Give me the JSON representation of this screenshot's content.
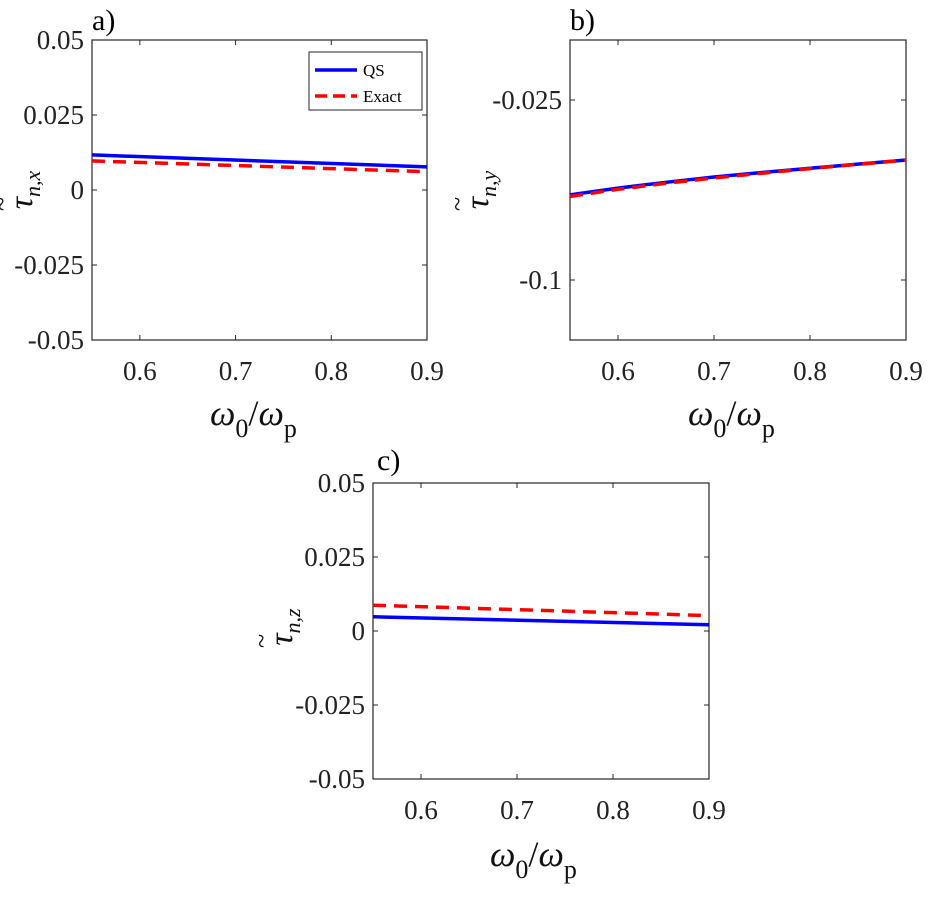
{
  "chart_data": [
    {
      "panel": "a)",
      "type": "line",
      "xlabel": {
        "base": "ω",
        "sub": "0",
        "sep": "/",
        "base2": "ω",
        "sub2": "p"
      },
      "ylabel": {
        "tilde": "~",
        "base": "τ",
        "sub": "n,x"
      },
      "xlim": [
        0.55,
        0.9
      ],
      "ylim": [
        -0.05,
        0.05
      ],
      "xticks": [
        0.6,
        0.7,
        0.8,
        0.9
      ],
      "xtick_labels": [
        "0.6",
        "0.7",
        "0.8",
        "0.9"
      ],
      "yticks": [
        0.05,
        0.025,
        0,
        -0.025,
        -0.05
      ],
      "ytick_labels": [
        "0.05",
        "0.025",
        "0",
        "-0.025",
        "-0.05"
      ],
      "legend": {
        "position": "top-right",
        "entries": [
          "QS",
          "Exact"
        ]
      },
      "series": [
        {
          "name": "QS",
          "color": "#0000ff",
          "style": "solid",
          "x": [
            0.55,
            0.9
          ],
          "y": [
            0.0117,
            0.0077
          ]
        },
        {
          "name": "Exact",
          "color": "#ff0000",
          "style": "dashed",
          "x": [
            0.55,
            0.9
          ],
          "y": [
            0.0097,
            0.0061
          ]
        }
      ]
    },
    {
      "panel": "b)",
      "type": "line",
      "xlabel": {
        "base": "ω",
        "sub": "0",
        "sep": "/",
        "base2": "ω",
        "sub2": "p"
      },
      "ylabel": {
        "tilde": "~",
        "base": "τ",
        "sub": "n,y"
      },
      "xlim": [
        0.55,
        0.9
      ],
      "ylim": [
        -0.125,
        0.0
      ],
      "xticks": [
        0.6,
        0.7,
        0.8,
        0.9
      ],
      "xtick_labels": [
        "0.6",
        "0.7",
        "0.8",
        "0.9"
      ],
      "yticks": [
        -0.025,
        -0.1
      ],
      "ytick_labels": [
        "-0.025",
        "-0.1"
      ],
      "series": [
        {
          "name": "QS",
          "color": "#0000ff",
          "style": "solid",
          "x": [
            0.55,
            0.6,
            0.65,
            0.7,
            0.75,
            0.8,
            0.85,
            0.9
          ],
          "y": [
            -0.0645,
            -0.0617,
            -0.0593,
            -0.0571,
            -0.0552,
            -0.0534,
            -0.0517,
            -0.05
          ]
        },
        {
          "name": "Exact",
          "color": "#ff0000",
          "style": "dashed",
          "x": [
            0.55,
            0.6,
            0.65,
            0.7,
            0.75,
            0.8,
            0.85,
            0.9
          ],
          "y": [
            -0.0652,
            -0.0622,
            -0.0597,
            -0.0575,
            -0.0555,
            -0.0536,
            -0.0518,
            -0.0501
          ]
        }
      ]
    },
    {
      "panel": "c)",
      "type": "line",
      "xlabel": {
        "base": "ω",
        "sub": "0",
        "sep": "/",
        "base2": "ω",
        "sub2": "p"
      },
      "ylabel": {
        "tilde": "~",
        "base": "τ",
        "sub": "n,z"
      },
      "xlim": [
        0.55,
        0.9
      ],
      "ylim": [
        -0.05,
        0.05
      ],
      "xticks": [
        0.6,
        0.7,
        0.8,
        0.9
      ],
      "xtick_labels": [
        "0.6",
        "0.7",
        "0.8",
        "0.9"
      ],
      "yticks": [
        0.05,
        0.025,
        0,
        -0.025,
        -0.05
      ],
      "ytick_labels": [
        "0.05",
        "0.025",
        "0",
        "-0.025",
        "-0.05"
      ],
      "series": [
        {
          "name": "QS",
          "color": "#0000ff",
          "style": "solid",
          "x": [
            0.55,
            0.9
          ],
          "y": [
            0.0048,
            0.0021
          ]
        },
        {
          "name": "Exact",
          "color": "#ff0000",
          "style": "dashed",
          "x": [
            0.55,
            0.9
          ],
          "y": [
            0.0087,
            0.0052
          ]
        }
      ]
    }
  ]
}
